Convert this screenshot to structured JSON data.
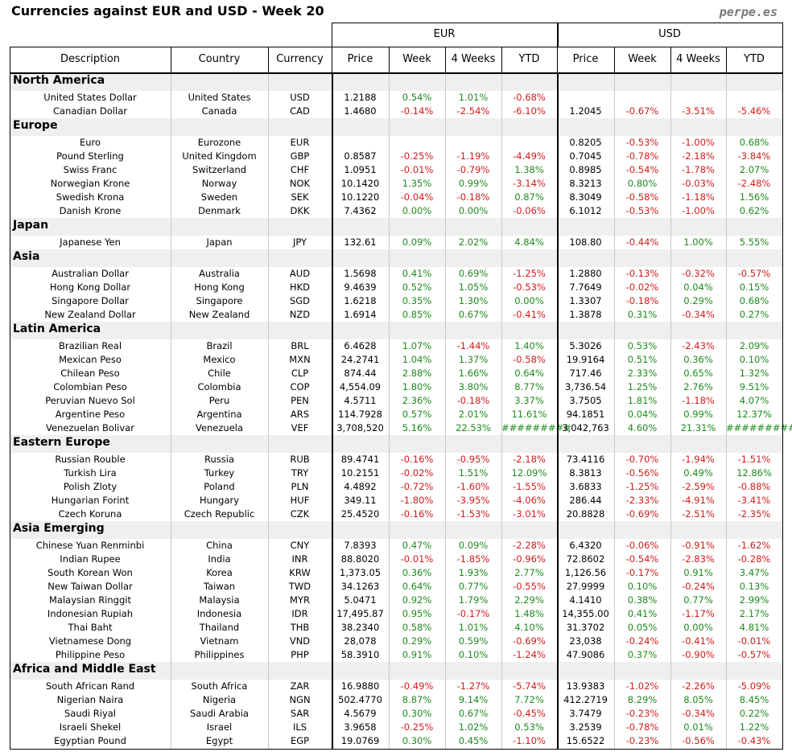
{
  "header": {
    "title": "Currencies against EUR and USD - Week 20",
    "site": "perpe.es"
  },
  "table": {
    "group_headers": [
      "EUR",
      "USD"
    ],
    "columns": [
      "Description",
      "Country",
      "Currency",
      "Price",
      "Week",
      "4 Weeks",
      "YTD",
      "Price",
      "Week",
      "4 Weeks",
      "YTD"
    ],
    "groups": [
      {
        "name": "North America",
        "rows": [
          [
            "United States Dollar",
            "United States",
            "USD",
            "1.2188",
            "0.54%",
            "1.01%",
            "-0.68%",
            null,
            null,
            null,
            null
          ],
          [
            "Canadian Dollar",
            "Canada",
            "CAD",
            "1.4680",
            "-0.14%",
            "-2.54%",
            "-6.10%",
            "1.2045",
            "-0.67%",
            "-3.51%",
            "-5.46%"
          ]
        ]
      },
      {
        "name": "Europe",
        "rows": [
          [
            "Euro",
            "Eurozone",
            "EUR",
            null,
            null,
            null,
            null,
            "0.8205",
            "-0.53%",
            "-1.00%",
            "0.68%"
          ],
          [
            "Pound Sterling",
            "United Kingdom",
            "GBP",
            "0.8587",
            "-0.25%",
            "-1.19%",
            "-4.49%",
            "0.7045",
            "-0.78%",
            "-2.18%",
            "-3.84%"
          ],
          [
            "Swiss Franc",
            "Switzerland",
            "CHF",
            "1.0951",
            "-0.01%",
            "-0.79%",
            "1.38%",
            "0.8985",
            "-0.54%",
            "-1.78%",
            "2.07%"
          ],
          [
            "Norwegian Krone",
            "Norway",
            "NOK",
            "10.1420",
            "1.35%",
            "0.99%",
            "-3.14%",
            "8.3213",
            "0.80%",
            "-0.03%",
            "-2.48%"
          ],
          [
            "Swedish Krona",
            "Sweden",
            "SEK",
            "10.1220",
            "-0.04%",
            "-0.18%",
            "0.87%",
            "8.3049",
            "-0.58%",
            "-1.18%",
            "1.56%"
          ],
          [
            "Danish Krone",
            "Denmark",
            "DKK",
            "7.4362",
            "0.00%",
            "0.00%",
            "-0.06%",
            "6.1012",
            "-0.53%",
            "-1.00%",
            "0.62%"
          ]
        ]
      },
      {
        "name": "Japan",
        "rows": [
          [
            "Japanese Yen",
            "Japan",
            "JPY",
            "132.61",
            "0.09%",
            "2.02%",
            "4.84%",
            "108.80",
            "-0.44%",
            "1.00%",
            "5.55%"
          ]
        ]
      },
      {
        "name": "Asia",
        "rows": [
          [
            "Australian Dollar",
            "Australia",
            "AUD",
            "1.5698",
            "0.41%",
            "0.69%",
            "-1.25%",
            "1.2880",
            "-0.13%",
            "-0.32%",
            "-0.57%"
          ],
          [
            "Hong Kong Dollar",
            "Hong Kong",
            "HKD",
            "9.4639",
            "0.52%",
            "1.05%",
            "-0.53%",
            "7.7649",
            "-0.02%",
            "0.04%",
            "0.15%"
          ],
          [
            "Singapore Dollar",
            "Singapore",
            "SGD",
            "1.6218",
            "0.35%",
            "1.30%",
            "0.00%",
            "1.3307",
            "-0.18%",
            "0.29%",
            "0.68%"
          ],
          [
            "New Zealand Dollar",
            "New Zealand",
            "NZD",
            "1.6914",
            "0.85%",
            "0.67%",
            "-0.41%",
            "1.3878",
            "0.31%",
            "-0.34%",
            "0.27%"
          ]
        ]
      },
      {
        "name": "Latin America",
        "rows": [
          [
            "Brazilian Real",
            "Brazil",
            "BRL",
            "6.4628",
            "1.07%",
            "-1.44%",
            "1.40%",
            "5.3026",
            "0.53%",
            "-2.43%",
            "2.09%"
          ],
          [
            "Mexican Peso",
            "Mexico",
            "MXN",
            "24.2741",
            "1.04%",
            "1.37%",
            "-0.58%",
            "19.9164",
            "0.51%",
            "0.36%",
            "0.10%"
          ],
          [
            "Chilean Peso",
            "Chile",
            "CLP",
            "874.44",
            "2.88%",
            "1.66%",
            "0.64%",
            "717.46",
            "2.33%",
            "0.65%",
            "1.32%"
          ],
          [
            "Colombian Peso",
            "Colombia",
            "COP",
            "4,554.09",
            "1.80%",
            "3.80%",
            "8.77%",
            "3,736.54",
            "1.25%",
            "2.76%",
            "9.51%"
          ],
          [
            "Peruvian Nuevo Sol",
            "Peru",
            "PEN",
            "4.5711",
            "2.36%",
            "-0.18%",
            "3.37%",
            "3.7505",
            "1.81%",
            "-1.18%",
            "4.07%"
          ],
          [
            "Argentine Peso",
            "Argentina",
            "ARS",
            "114.7928",
            "0.57%",
            "2.01%",
            "11.61%",
            "94.1851",
            "0.04%",
            "0.99%",
            "12.37%"
          ],
          [
            "Venezuelan Bolivar",
            "Venezuela",
            "VEF",
            "3,708,520",
            "5.16%",
            "22.53%",
            "#########",
            "3,042,763",
            "4.60%",
            "21.31%",
            "#########"
          ]
        ]
      },
      {
        "name": "Eastern Europe",
        "rows": [
          [
            "Russian Rouble",
            "Russia",
            "RUB",
            "89.4741",
            "-0.16%",
            "-0.95%",
            "-2.18%",
            "73.4116",
            "-0.70%",
            "-1.94%",
            "-1.51%"
          ],
          [
            "Turkish Lira",
            "Turkey",
            "TRY",
            "10.2151",
            "-0.02%",
            "1.51%",
            "12.09%",
            "8.3813",
            "-0.56%",
            "0.49%",
            "12.86%"
          ],
          [
            "Polish Zloty",
            "Poland",
            "PLN",
            "4.4892",
            "-0.72%",
            "-1.60%",
            "-1.55%",
            "3.6833",
            "-1.25%",
            "-2.59%",
            "-0.88%"
          ],
          [
            "Hungarian Forint",
            "Hungary",
            "HUF",
            "349.11",
            "-1.80%",
            "-3.95%",
            "-4.06%",
            "286.44",
            "-2.33%",
            "-4.91%",
            "-3.41%"
          ],
          [
            "Czech Koruna",
            "Czech Republic",
            "CZK",
            "25.4520",
            "-0.16%",
            "-1.53%",
            "-3.01%",
            "20.8828",
            "-0.69%",
            "-2.51%",
            "-2.35%"
          ]
        ]
      },
      {
        "name": "Asia Emerging",
        "rows": [
          [
            "Chinese Yuan Renminbi",
            "China",
            "CNY",
            "7.8393",
            "0.47%",
            "0.09%",
            "-2.28%",
            "6.4320",
            "-0.06%",
            "-0.91%",
            "-1.62%"
          ],
          [
            "Indian Rupee",
            "India",
            "INR",
            "88.8020",
            "-0.01%",
            "-1.85%",
            "-0.96%",
            "72.8602",
            "-0.54%",
            "-2.83%",
            "-0.28%"
          ],
          [
            "South Korean Won",
            "Korea",
            "KRW",
            "1,373.05",
            "0.36%",
            "1.93%",
            "2.77%",
            "1,126.56",
            "-0.17%",
            "0.91%",
            "3.47%"
          ],
          [
            "New Taiwan Dollar",
            "Taiwan",
            "TWD",
            "34.1263",
            "0.64%",
            "0.77%",
            "-0.55%",
            "27.9999",
            "0.10%",
            "-0.24%",
            "0.13%"
          ],
          [
            "Malaysian Ringgit",
            "Malaysia",
            "MYR",
            "5.0471",
            "0.92%",
            "1.79%",
            "2.29%",
            "4.1410",
            "0.38%",
            "0.77%",
            "2.99%"
          ],
          [
            "Indonesian Rupiah",
            "Indonesia",
            "IDR",
            "17,495.87",
            "0.95%",
            "-0.17%",
            "1.48%",
            "14,355.00",
            "0.41%",
            "-1.17%",
            "2.17%"
          ],
          [
            "Thai Baht",
            "Thailand",
            "THB",
            "38.2340",
            "0.58%",
            "1.01%",
            "4.10%",
            "31.3702",
            "0.05%",
            "0.00%",
            "4.81%"
          ],
          [
            "Vietnamese Dong",
            "Vietnam",
            "VND",
            "28,078",
            "0.29%",
            "0.59%",
            "-0.69%",
            "23,038",
            "-0.24%",
            "-0.41%",
            "-0.01%"
          ],
          [
            "Philippine Peso",
            "Philippines",
            "PHP",
            "58.3910",
            "0.91%",
            "0.10%",
            "-1.24%",
            "47.9086",
            "0.37%",
            "-0.90%",
            "-0.57%"
          ]
        ]
      },
      {
        "name": "Africa and Middle East",
        "rows": [
          [
            "South African Rand",
            "South Africa",
            "ZAR",
            "16.9880",
            "-0.49%",
            "-1.27%",
            "-5.74%",
            "13.9383",
            "-1.02%",
            "-2.26%",
            "-5.09%"
          ],
          [
            "Nigerian Naira",
            "Nigeria",
            "NGN",
            "502.4770",
            "8.87%",
            "9.14%",
            "7.72%",
            "412.2719",
            "8.29%",
            "8.05%",
            "8.45%"
          ],
          [
            "Saudi Riyal",
            "Saudi Arabia",
            "SAR",
            "4.5679",
            "0.30%",
            "0.67%",
            "-0.45%",
            "3.7479",
            "-0.23%",
            "-0.34%",
            "0.22%"
          ],
          [
            "Israeli Shekel",
            "Israel",
            "ILS",
            "3.9658",
            "-0.25%",
            "1.02%",
            "0.53%",
            "3.2539",
            "-0.78%",
            "0.01%",
            "1.22%"
          ],
          [
            "Egyptian Pound",
            "Egypt",
            "EGP",
            "19.0769",
            "0.30%",
            "0.45%",
            "-1.10%",
            "15.6522",
            "-0.23%",
            "-0.56%",
            "-0.43%"
          ]
        ]
      }
    ]
  }
}
